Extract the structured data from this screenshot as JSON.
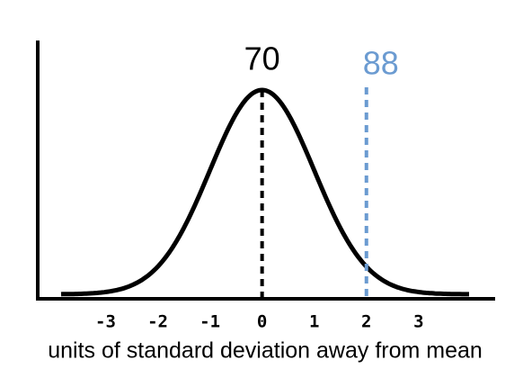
{
  "chart_data": {
    "type": "normal-curve",
    "x_label": "units of standard deviation away from mean",
    "xlim": [
      -4.3,
      4.45
    ],
    "xticks": [
      -3,
      -2,
      -1,
      0,
      1,
      2,
      3
    ],
    "markers": [
      {
        "x": 0,
        "label": "70",
        "color": "#000000"
      },
      {
        "x": 2,
        "label": "88",
        "color": "#6b9bd1"
      }
    ]
  }
}
